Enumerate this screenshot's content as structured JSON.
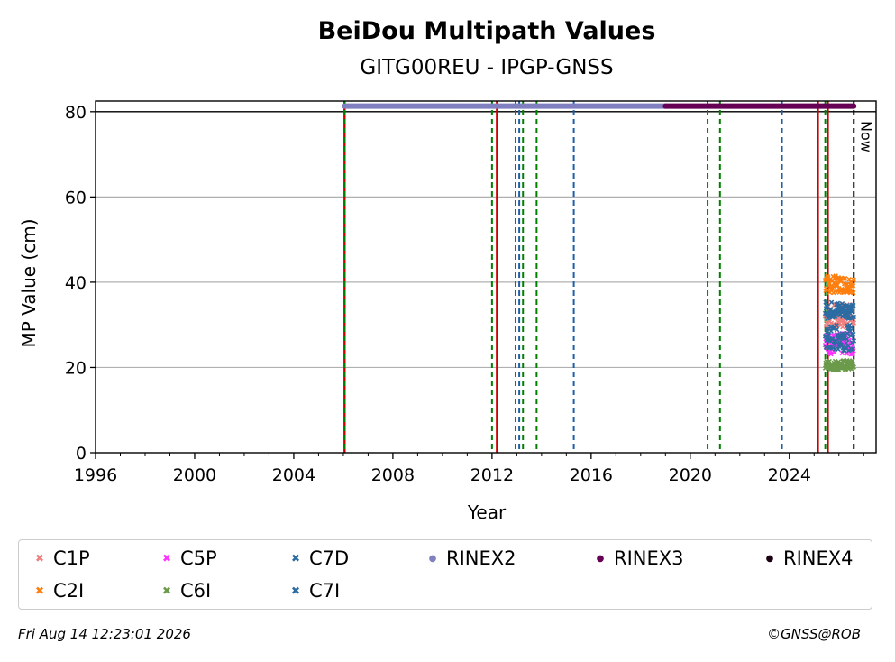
{
  "chart_data": {
    "type": "scatter",
    "title": "BeiDou Multipath Values",
    "subtitle": "GITG00REU - IPGP-GNSS",
    "xlabel": "Year",
    "ylabel": "MP Value (cm)",
    "xlim": [
      1996,
      2027.5
    ],
    "ylim": [
      0,
      82.5
    ],
    "xticks": [
      1996,
      2000,
      2004,
      2008,
      2012,
      2016,
      2020,
      2024
    ],
    "yticks": [
      0,
      20,
      40,
      60,
      80
    ],
    "grid": "horizontal",
    "reference_line_y": 80,
    "now_label": "Now",
    "now_x": 2026.6,
    "vertical_lines": [
      {
        "x": 2006.05,
        "color": "#cc0000",
        "style": "solid"
      },
      {
        "x": 2006.05,
        "color": "#008000",
        "style": "dashed"
      },
      {
        "x": 2012.0,
        "color": "#008000",
        "style": "dashed"
      },
      {
        "x": 2012.2,
        "color": "#cc0000",
        "style": "solid"
      },
      {
        "x": 2012.95,
        "color": "#1f5fa8",
        "style": "dashed"
      },
      {
        "x": 2013.1,
        "color": "#1f5fa8",
        "style": "dashed"
      },
      {
        "x": 2013.25,
        "color": "#008000",
        "style": "dashed"
      },
      {
        "x": 2013.8,
        "color": "#008000",
        "style": "dashed"
      },
      {
        "x": 2015.3,
        "color": "#1f5fa8",
        "style": "dashed"
      },
      {
        "x": 2020.7,
        "color": "#008000",
        "style": "dashed"
      },
      {
        "x": 2021.2,
        "color": "#008000",
        "style": "dashed"
      },
      {
        "x": 2023.7,
        "color": "#1f5fa8",
        "style": "dashed"
      },
      {
        "x": 2025.15,
        "color": "#cc0000",
        "style": "solid"
      },
      {
        "x": 2025.45,
        "color": "#008000",
        "style": "dashed"
      },
      {
        "x": 2025.55,
        "color": "#cc0000",
        "style": "solid"
      },
      {
        "x": 2026.6,
        "color": "#000000",
        "style": "dashed"
      }
    ],
    "rinex_bars": [
      {
        "name": "RINEX2",
        "start": 2006.05,
        "end": 2019.0,
        "y": 81.3,
        "color": "#8080c0"
      },
      {
        "name": "RINEX3",
        "start": 2019.0,
        "end": 2026.6,
        "y": 81.3,
        "color": "#660055"
      }
    ],
    "series": [
      {
        "name": "C1P",
        "color": "#f08080",
        "x_range": [
          2025.45,
          2026.6
        ],
        "center": 32,
        "spread": 3
      },
      {
        "name": "C2I",
        "color": "#ff7f0e",
        "x_range": [
          2025.45,
          2026.6
        ],
        "center": 39.5,
        "spread": 2
      },
      {
        "name": "C5P",
        "color": "#ff33ff",
        "x_range": [
          2025.45,
          2026.6
        ],
        "center": 25.5,
        "spread": 2.5
      },
      {
        "name": "C6I",
        "color": "#6b9a4b",
        "x_range": [
          2025.45,
          2026.6
        ],
        "center": 20.5,
        "spread": 1.2
      },
      {
        "name": "C7D",
        "color": "#2b6ca3",
        "x_range": [
          2025.45,
          2026.6
        ],
        "center": 27,
        "spread": 3
      },
      {
        "name": "C7I",
        "color": "#2b6ca3",
        "x_range": [
          2025.45,
          2026.6
        ],
        "center": 33.5,
        "spread": 2
      }
    ],
    "legend": [
      {
        "name": "C1P",
        "color": "#f08080",
        "marker": "x"
      },
      {
        "name": "C2I",
        "color": "#ff7f0e",
        "marker": "x"
      },
      {
        "name": "C5P",
        "color": "#ff33ff",
        "marker": "x"
      },
      {
        "name": "C6I",
        "color": "#6b9a4b",
        "marker": "x"
      },
      {
        "name": "C7D",
        "color": "#2b6ca3",
        "marker": "x"
      },
      {
        "name": "C7I",
        "color": "#2b6ca3",
        "marker": "x"
      },
      {
        "name": "RINEX2",
        "color": "#8080c0",
        "marker": "dot"
      },
      {
        "name": "RINEX3",
        "color": "#660055",
        "marker": "dot"
      },
      {
        "name": "RINEX4",
        "color": "#1a0010",
        "marker": "dot"
      }
    ],
    "legend_position": "bottom"
  },
  "footer": {
    "timestamp": "Fri Aug 14 12:23:01 2026",
    "copyright": "©GNSS@ROB"
  }
}
